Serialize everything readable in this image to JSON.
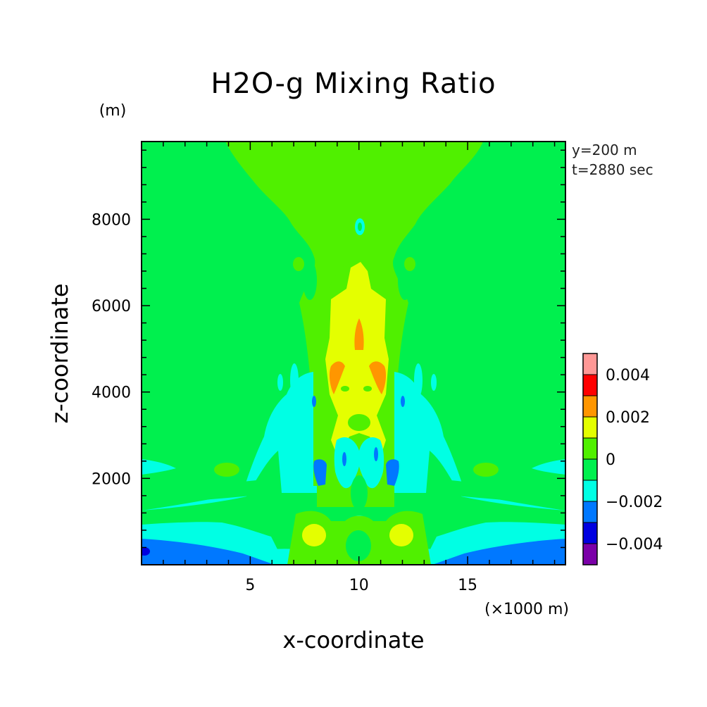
{
  "chart_data": {
    "type": "heatmap",
    "subtype": "filled-contour",
    "title": "H2O-g Mixing Ratio",
    "xlabel": "x-coordinate",
    "ylabel": "z-coordinate",
    "x_unit_label": "(×1000 m)",
    "y_unit_label": "(m)",
    "annotations": [
      "y=200 m",
      "t=2880 sec"
    ],
    "xlim": [
      0,
      19.5
    ],
    "ylim": [
      0,
      9800
    ],
    "x_ticks": [
      5,
      10,
      15
    ],
    "y_ticks": [
      2000,
      4000,
      6000,
      8000
    ],
    "colorbar": {
      "levels": [
        -0.005,
        -0.004,
        -0.003,
        -0.002,
        -0.001,
        0,
        0.001,
        0.002,
        0.003,
        0.004,
        0.005
      ],
      "colors": [
        "#7b00a8",
        "#0000e0",
        "#0078ff",
        "#00ffe4",
        "#00f04e",
        "#50f000",
        "#e4ff00",
        "#ff9600",
        "#ff0000",
        "#ff9896"
      ],
      "tick_labels": [
        "0.004",
        "0.002",
        "0",
        "−0.002",
        "−0.004"
      ],
      "tick_values": [
        0.004,
        0.002,
        0,
        -0.002,
        -0.004
      ]
    },
    "background_level": "0 to 0.001",
    "regions": [
      {
        "level": 1,
        "x": [
          [
            5.5,
            0
          ],
          [
            5.8,
            9.8
          ],
          [
            13.6,
            9.8
          ],
          [
            13.9,
            0
          ]
        ],
        "note": "upper funnel"
      },
      {
        "level": 0,
        "x": [],
        "note": "background"
      }
    ]
  },
  "figure": {
    "title": "H2O-g Mixing Ratio",
    "xlabel": "x-coordinate",
    "ylabel": "z-coordinate",
    "x_unit": "(×1000 m)",
    "y_unit": "(m)",
    "annot_y": "y=200 m",
    "annot_t": "t=2880 sec"
  }
}
